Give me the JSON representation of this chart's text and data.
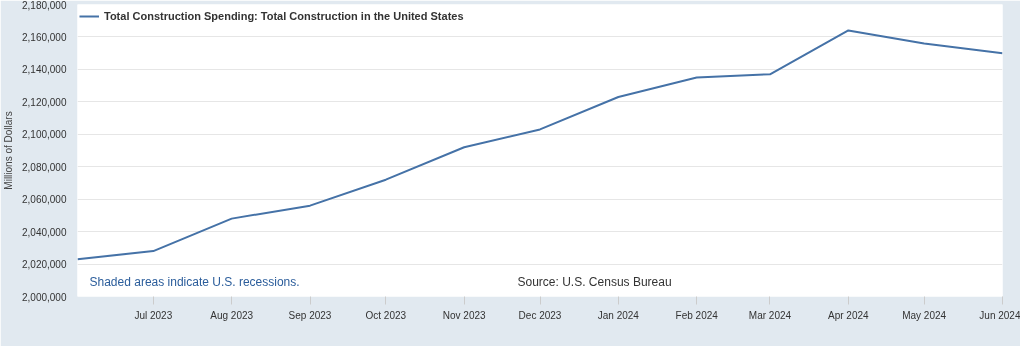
{
  "chart_data": {
    "type": "line",
    "x": [
      "2023-06",
      "2023-07",
      "2023-08",
      "2023-09",
      "2023-10",
      "2023-11",
      "2023-12",
      "2024-01",
      "2024-02",
      "2024-03",
      "2024-04",
      "2024-05",
      "2024-06"
    ],
    "series": [
      {
        "name": "Total Construction Spending: Total Construction in the United States",
        "color": "#4572a7",
        "values": [
          2023000,
          2028000,
          2048000,
          2056000,
          2072000,
          2092000,
          2103000,
          2123000,
          2135000,
          2137000,
          2164000,
          2156000,
          2150000
        ]
      }
    ],
    "ylabel": "Millions of Dollars",
    "xlim": [
      "2023-06",
      "2024-06"
    ],
    "xticks": [
      {
        "value": "2023-07",
        "label": "Jul 2023"
      },
      {
        "value": "2023-08",
        "label": "Aug 2023"
      },
      {
        "value": "2023-09",
        "label": "Sep 2023"
      },
      {
        "value": "2023-10",
        "label": "Oct 2023"
      },
      {
        "value": "2023-11",
        "label": "Nov 2023"
      },
      {
        "value": "2023-12",
        "label": "Dec 2023"
      },
      {
        "value": "2024-01",
        "label": "Jan 2024"
      },
      {
        "value": "2024-02",
        "label": "Feb 2024"
      },
      {
        "value": "2024-03",
        "label": "Mar 2024"
      },
      {
        "value": "2024-04",
        "label": "Apr 2024"
      },
      {
        "value": "2024-05",
        "label": "May 2024"
      },
      {
        "value": "2024-06",
        "label": "Jun 2024"
      }
    ],
    "ylim": [
      2000000,
      2180000
    ],
    "yticks": [
      {
        "value": 2000000,
        "label": "2,000,000"
      },
      {
        "value": 2020000,
        "label": "2,020,000"
      },
      {
        "value": 2040000,
        "label": "2,040,000"
      },
      {
        "value": 2060000,
        "label": "2,060,000"
      },
      {
        "value": 2080000,
        "label": "2,080,000"
      },
      {
        "value": 2100000,
        "label": "2,100,000"
      },
      {
        "value": 2120000,
        "label": "2,120,000"
      },
      {
        "value": 2140000,
        "label": "2,140,000"
      },
      {
        "value": 2160000,
        "label": "2,160,000"
      },
      {
        "value": 2180000,
        "label": "2,180,000"
      }
    ],
    "grid": "y",
    "legend": "top left",
    "marker": "none",
    "line_style": "solid",
    "annotations": [
      "Shaded areas indicate U.S. recessions.",
      "Source: U.S. Census Bureau"
    ]
  }
}
